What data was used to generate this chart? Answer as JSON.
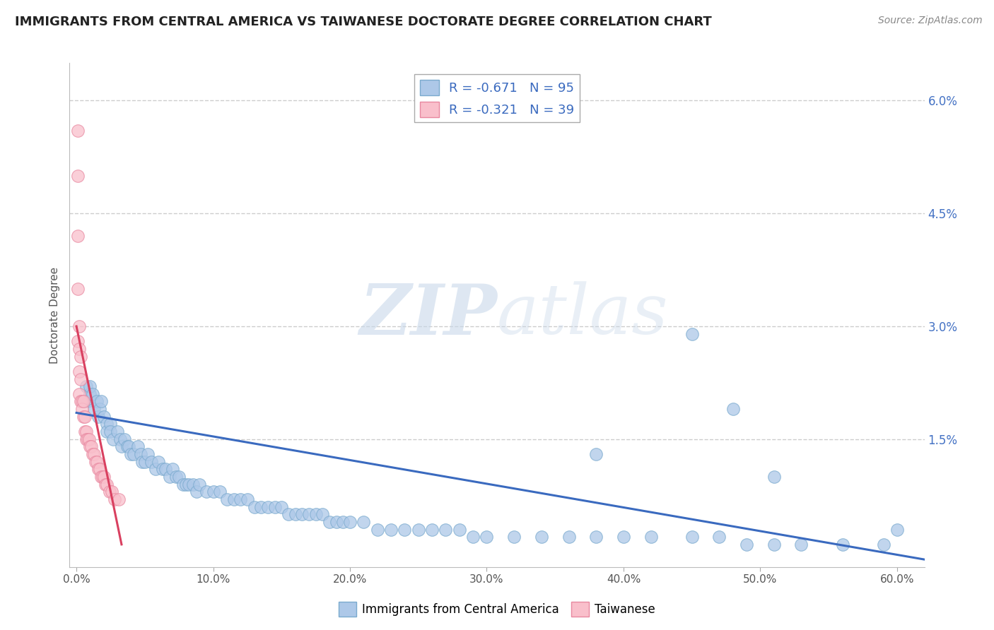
{
  "title": "IMMIGRANTS FROM CENTRAL AMERICA VS TAIWANESE DOCTORATE DEGREE CORRELATION CHART",
  "source": "Source: ZipAtlas.com",
  "xlabel": "Immigrants from Central America",
  "ylabel": "Doctorate Degree",
  "xlim": [
    -0.005,
    0.62
  ],
  "ylim": [
    -0.002,
    0.065
  ],
  "xticks": [
    0.0,
    0.1,
    0.2,
    0.3,
    0.4,
    0.5,
    0.6
  ],
  "xticklabels": [
    "0.0%",
    "10.0%",
    "20.0%",
    "30.0%",
    "40.0%",
    "50.0%",
    "60.0%"
  ],
  "yticks_right": [
    0.0,
    0.015,
    0.03,
    0.045,
    0.06
  ],
  "yticklabels_right": [
    "",
    "1.5%",
    "3.0%",
    "4.5%",
    "6.0%"
  ],
  "blue_color": "#adc8e8",
  "pink_color": "#f9bfcb",
  "blue_edge": "#7aaace",
  "pink_edge": "#e888a0",
  "line_blue": "#3a6abf",
  "line_pink": "#d94060",
  "legend_R_blue": "R = -0.671",
  "legend_N_blue": "N = 95",
  "legend_R_pink": "R = -0.321",
  "legend_N_pink": "N = 39",
  "watermark_zip": "ZIP",
  "watermark_atlas": "atlas",
  "grid_color": "#cccccc",
  "background": "#ffffff",
  "blue_scatter_x": [
    0.005,
    0.007,
    0.008,
    0.01,
    0.01,
    0.012,
    0.013,
    0.015,
    0.016,
    0.017,
    0.018,
    0.02,
    0.022,
    0.022,
    0.025,
    0.025,
    0.027,
    0.03,
    0.032,
    0.033,
    0.035,
    0.037,
    0.038,
    0.04,
    0.042,
    0.045,
    0.047,
    0.048,
    0.05,
    0.052,
    0.055,
    0.058,
    0.06,
    0.063,
    0.065,
    0.068,
    0.07,
    0.073,
    0.075,
    0.078,
    0.08,
    0.082,
    0.085,
    0.088,
    0.09,
    0.095,
    0.1,
    0.105,
    0.11,
    0.115,
    0.12,
    0.125,
    0.13,
    0.135,
    0.14,
    0.145,
    0.15,
    0.155,
    0.16,
    0.165,
    0.17,
    0.175,
    0.18,
    0.185,
    0.19,
    0.195,
    0.2,
    0.21,
    0.22,
    0.23,
    0.24,
    0.25,
    0.26,
    0.27,
    0.28,
    0.29,
    0.3,
    0.32,
    0.34,
    0.36,
    0.38,
    0.4,
    0.42,
    0.45,
    0.47,
    0.49,
    0.51,
    0.53,
    0.56,
    0.59,
    0.45,
    0.48,
    0.51,
    0.38,
    0.6
  ],
  "blue_scatter_y": [
    0.02,
    0.022,
    0.02,
    0.021,
    0.022,
    0.021,
    0.019,
    0.02,
    0.018,
    0.019,
    0.02,
    0.018,
    0.017,
    0.016,
    0.017,
    0.016,
    0.015,
    0.016,
    0.015,
    0.014,
    0.015,
    0.014,
    0.014,
    0.013,
    0.013,
    0.014,
    0.013,
    0.012,
    0.012,
    0.013,
    0.012,
    0.011,
    0.012,
    0.011,
    0.011,
    0.01,
    0.011,
    0.01,
    0.01,
    0.009,
    0.009,
    0.009,
    0.009,
    0.008,
    0.009,
    0.008,
    0.008,
    0.008,
    0.007,
    0.007,
    0.007,
    0.007,
    0.006,
    0.006,
    0.006,
    0.006,
    0.006,
    0.005,
    0.005,
    0.005,
    0.005,
    0.005,
    0.005,
    0.004,
    0.004,
    0.004,
    0.004,
    0.004,
    0.003,
    0.003,
    0.003,
    0.003,
    0.003,
    0.003,
    0.003,
    0.002,
    0.002,
    0.002,
    0.002,
    0.002,
    0.002,
    0.002,
    0.002,
    0.002,
    0.002,
    0.001,
    0.001,
    0.001,
    0.001,
    0.001,
    0.029,
    0.019,
    0.01,
    0.013,
    0.003
  ],
  "pink_scatter_x": [
    0.001,
    0.001,
    0.001,
    0.001,
    0.001,
    0.002,
    0.002,
    0.002,
    0.002,
    0.003,
    0.003,
    0.003,
    0.004,
    0.004,
    0.005,
    0.005,
    0.006,
    0.006,
    0.007,
    0.007,
    0.008,
    0.009,
    0.01,
    0.011,
    0.012,
    0.013,
    0.014,
    0.015,
    0.016,
    0.017,
    0.018,
    0.019,
    0.02,
    0.021,
    0.022,
    0.024,
    0.026,
    0.028,
    0.031
  ],
  "pink_scatter_y": [
    0.056,
    0.05,
    0.042,
    0.035,
    0.028,
    0.03,
    0.027,
    0.024,
    0.021,
    0.026,
    0.023,
    0.02,
    0.02,
    0.019,
    0.02,
    0.018,
    0.018,
    0.016,
    0.016,
    0.015,
    0.015,
    0.015,
    0.014,
    0.014,
    0.013,
    0.013,
    0.012,
    0.012,
    0.011,
    0.011,
    0.01,
    0.01,
    0.01,
    0.009,
    0.009,
    0.008,
    0.008,
    0.007,
    0.007
  ],
  "blue_line_x": [
    0.0,
    0.62
  ],
  "blue_line_y": [
    0.0185,
    -0.001
  ],
  "pink_line_x": [
    0.0,
    0.033
  ],
  "pink_line_y": [
    0.03,
    0.001
  ]
}
